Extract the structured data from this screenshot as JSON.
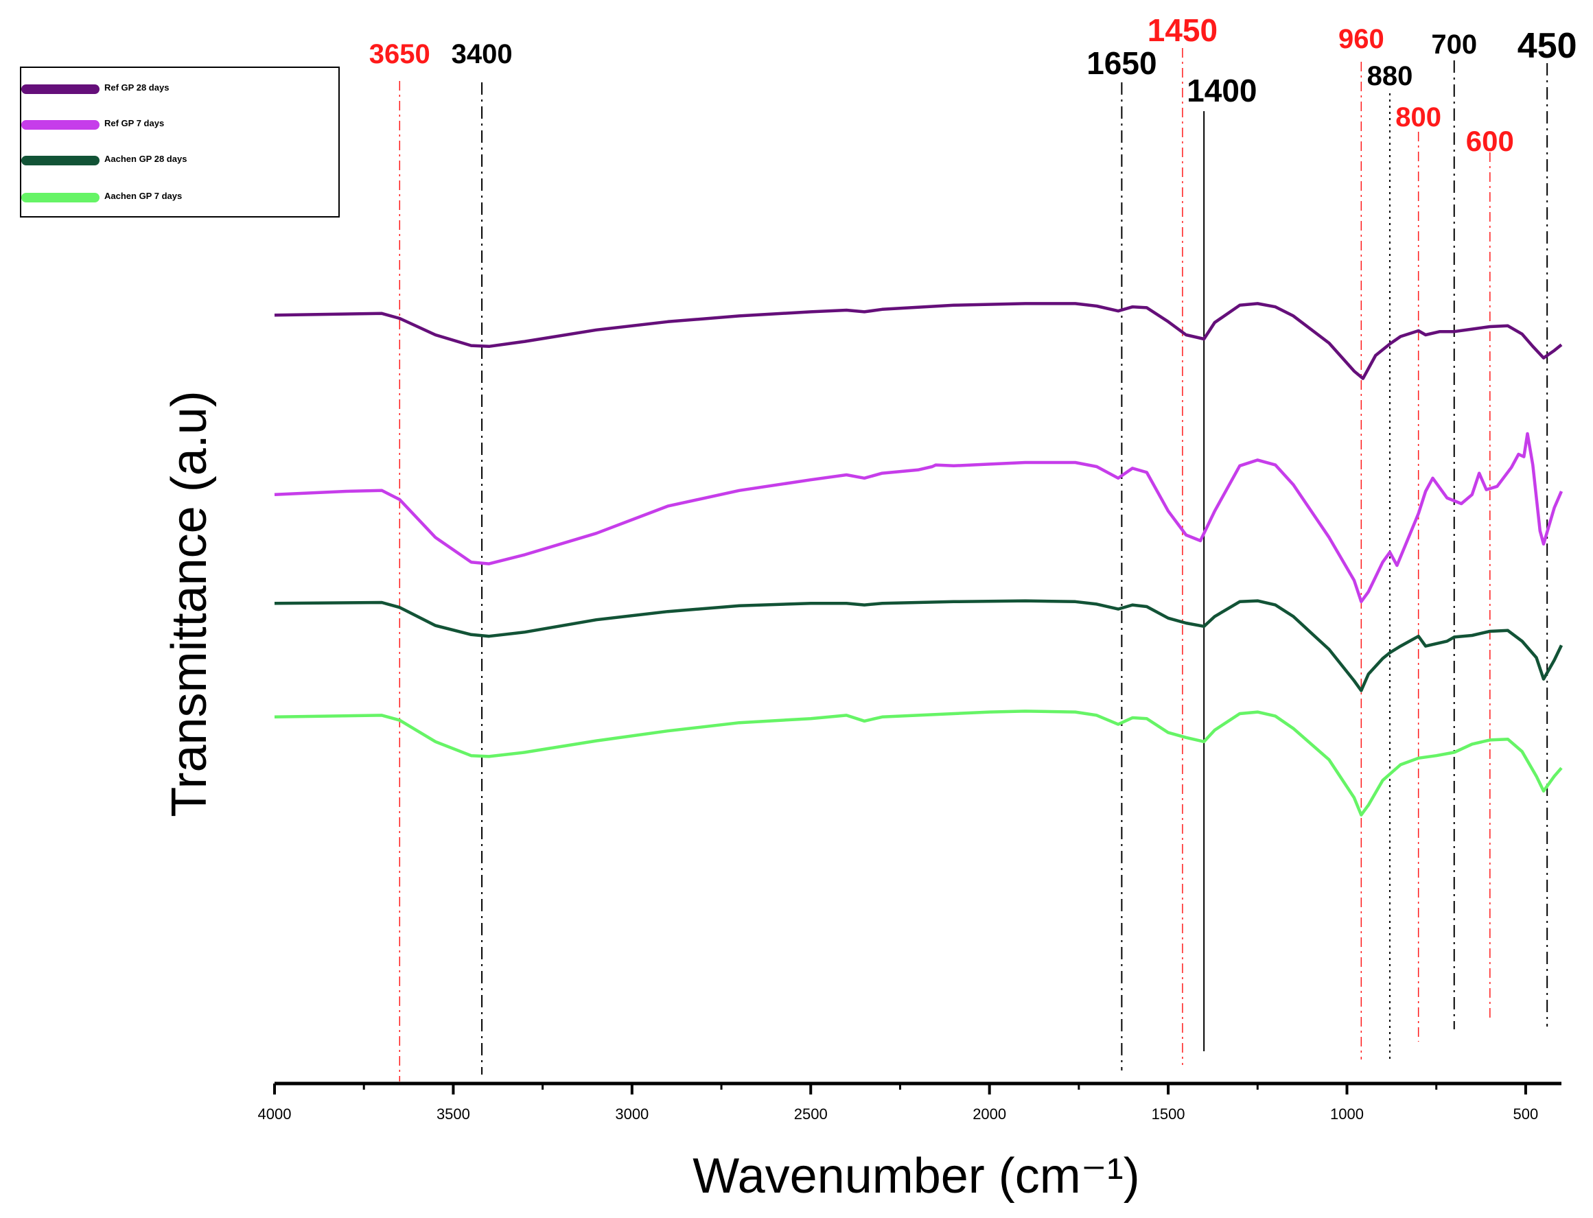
{
  "chart_data": {
    "type": "line",
    "xlabel": "Wavenumber (cm⁻¹)",
    "ylabel": "Transmittance (a.u)",
    "xlim": [
      4000,
      400
    ],
    "xticks": [
      4000,
      3500,
      3000,
      2500,
      2000,
      1500,
      1000,
      500
    ],
    "xtick_labels": [
      "4000",
      "3500",
      "3000",
      "2500",
      "2000",
      "1500",
      "1000",
      "500"
    ],
    "ylim": [
      0,
      100
    ],
    "legend_position": "top-left",
    "series": [
      {
        "name": "Ref GP 28 days",
        "color": "#650f7a",
        "points": [
          [
            4000,
            88.4
          ],
          [
            3700,
            88.6
          ],
          [
            3650,
            88.0
          ],
          [
            3550,
            86.0
          ],
          [
            3450,
            84.7
          ],
          [
            3400,
            84.6
          ],
          [
            3300,
            85.2
          ],
          [
            3100,
            86.6
          ],
          [
            2900,
            87.6
          ],
          [
            2700,
            88.3
          ],
          [
            2500,
            88.8
          ],
          [
            2400,
            89.0
          ],
          [
            2350,
            88.8
          ],
          [
            2300,
            89.1
          ],
          [
            2100,
            89.6
          ],
          [
            1900,
            89.8
          ],
          [
            1760,
            89.8
          ],
          [
            1700,
            89.5
          ],
          [
            1640,
            88.9
          ],
          [
            1600,
            89.4
          ],
          [
            1560,
            89.3
          ],
          [
            1500,
            87.6
          ],
          [
            1450,
            86.0
          ],
          [
            1400,
            85.5
          ],
          [
            1370,
            87.5
          ],
          [
            1300,
            89.6
          ],
          [
            1250,
            89.8
          ],
          [
            1200,
            89.4
          ],
          [
            1150,
            88.3
          ],
          [
            1050,
            85.0
          ],
          [
            980,
            81.6
          ],
          [
            955,
            80.7
          ],
          [
            920,
            83.5
          ],
          [
            880,
            84.9
          ],
          [
            850,
            85.8
          ],
          [
            800,
            86.5
          ],
          [
            780,
            86.0
          ],
          [
            740,
            86.4
          ],
          [
            700,
            86.4
          ],
          [
            650,
            86.7
          ],
          [
            600,
            87.0
          ],
          [
            550,
            87.1
          ],
          [
            510,
            86.1
          ],
          [
            480,
            84.6
          ],
          [
            450,
            83.2
          ],
          [
            420,
            84.1
          ],
          [
            400,
            84.8
          ]
        ]
      },
      {
        "name": "Ref GP 7 days",
        "color": "#c63dea",
        "points": [
          [
            4000,
            66.6
          ],
          [
            3800,
            67.0
          ],
          [
            3700,
            67.1
          ],
          [
            3650,
            66.0
          ],
          [
            3550,
            61.4
          ],
          [
            3450,
            58.4
          ],
          [
            3400,
            58.2
          ],
          [
            3300,
            59.3
          ],
          [
            3100,
            61.9
          ],
          [
            2900,
            65.2
          ],
          [
            2700,
            67.1
          ],
          [
            2500,
            68.4
          ],
          [
            2400,
            69.0
          ],
          [
            2350,
            68.6
          ],
          [
            2300,
            69.2
          ],
          [
            2200,
            69.6
          ],
          [
            2160,
            70.0
          ],
          [
            2150,
            70.2
          ],
          [
            2100,
            70.1
          ],
          [
            2000,
            70.3
          ],
          [
            1900,
            70.5
          ],
          [
            1760,
            70.5
          ],
          [
            1700,
            70.0
          ],
          [
            1640,
            68.6
          ],
          [
            1600,
            69.8
          ],
          [
            1560,
            69.3
          ],
          [
            1500,
            64.6
          ],
          [
            1450,
            61.7
          ],
          [
            1410,
            61.0
          ],
          [
            1370,
            64.6
          ],
          [
            1300,
            70.1
          ],
          [
            1250,
            70.8
          ],
          [
            1200,
            70.2
          ],
          [
            1150,
            67.8
          ],
          [
            1050,
            61.4
          ],
          [
            980,
            56.2
          ],
          [
            960,
            53.6
          ],
          [
            940,
            54.8
          ],
          [
            900,
            58.4
          ],
          [
            880,
            59.6
          ],
          [
            860,
            58.0
          ],
          [
            800,
            64.3
          ],
          [
            780,
            67.0
          ],
          [
            760,
            68.6
          ],
          [
            720,
            66.2
          ],
          [
            680,
            65.5
          ],
          [
            650,
            66.6
          ],
          [
            630,
            69.2
          ],
          [
            610,
            67.2
          ],
          [
            580,
            67.6
          ],
          [
            540,
            69.9
          ],
          [
            520,
            71.5
          ],
          [
            505,
            71.2
          ],
          [
            495,
            74.0
          ],
          [
            480,
            70.2
          ],
          [
            460,
            62.2
          ],
          [
            450,
            60.6
          ],
          [
            420,
            65.0
          ],
          [
            400,
            67.0
          ]
        ]
      },
      {
        "name": "Aachen GP 28 days",
        "color": "#125336",
        "points": [
          [
            4000,
            53.4
          ],
          [
            3700,
            53.5
          ],
          [
            3650,
            52.9
          ],
          [
            3550,
            50.7
          ],
          [
            3450,
            49.6
          ],
          [
            3400,
            49.4
          ],
          [
            3300,
            49.9
          ],
          [
            3100,
            51.4
          ],
          [
            2900,
            52.4
          ],
          [
            2700,
            53.1
          ],
          [
            2500,
            53.4
          ],
          [
            2400,
            53.4
          ],
          [
            2350,
            53.2
          ],
          [
            2300,
            53.4
          ],
          [
            2100,
            53.6
          ],
          [
            1900,
            53.7
          ],
          [
            1760,
            53.6
          ],
          [
            1700,
            53.3
          ],
          [
            1640,
            52.7
          ],
          [
            1600,
            53.2
          ],
          [
            1560,
            53.0
          ],
          [
            1500,
            51.6
          ],
          [
            1450,
            51.0
          ],
          [
            1400,
            50.6
          ],
          [
            1370,
            51.8
          ],
          [
            1300,
            53.6
          ],
          [
            1250,
            53.7
          ],
          [
            1200,
            53.2
          ],
          [
            1150,
            51.8
          ],
          [
            1050,
            47.8
          ],
          [
            980,
            44.0
          ],
          [
            960,
            42.8
          ],
          [
            940,
            44.8
          ],
          [
            900,
            46.7
          ],
          [
            880,
            47.4
          ],
          [
            850,
            48.2
          ],
          [
            800,
            49.4
          ],
          [
            780,
            48.2
          ],
          [
            720,
            48.8
          ],
          [
            700,
            49.3
          ],
          [
            650,
            49.5
          ],
          [
            600,
            50.0
          ],
          [
            550,
            50.1
          ],
          [
            510,
            48.8
          ],
          [
            470,
            46.8
          ],
          [
            450,
            44.2
          ],
          [
            420,
            46.5
          ],
          [
            400,
            48.3
          ]
        ]
      },
      {
        "name": "Aachen GP 7 days",
        "color": "#66f466",
        "points": [
          [
            4000,
            39.6
          ],
          [
            3700,
            39.8
          ],
          [
            3650,
            39.2
          ],
          [
            3550,
            36.6
          ],
          [
            3450,
            34.9
          ],
          [
            3400,
            34.8
          ],
          [
            3300,
            35.3
          ],
          [
            3100,
            36.7
          ],
          [
            2900,
            37.9
          ],
          [
            2700,
            38.9
          ],
          [
            2500,
            39.4
          ],
          [
            2400,
            39.8
          ],
          [
            2350,
            39.1
          ],
          [
            2300,
            39.6
          ],
          [
            2100,
            40.0
          ],
          [
            2000,
            40.2
          ],
          [
            1900,
            40.3
          ],
          [
            1760,
            40.2
          ],
          [
            1700,
            39.8
          ],
          [
            1640,
            38.7
          ],
          [
            1600,
            39.5
          ],
          [
            1560,
            39.4
          ],
          [
            1500,
            37.7
          ],
          [
            1450,
            37.1
          ],
          [
            1400,
            36.6
          ],
          [
            1370,
            38.0
          ],
          [
            1300,
            40.0
          ],
          [
            1250,
            40.2
          ],
          [
            1200,
            39.7
          ],
          [
            1150,
            38.2
          ],
          [
            1050,
            34.4
          ],
          [
            980,
            29.8
          ],
          [
            960,
            27.7
          ],
          [
            940,
            28.9
          ],
          [
            900,
            31.9
          ],
          [
            850,
            33.8
          ],
          [
            800,
            34.6
          ],
          [
            750,
            34.9
          ],
          [
            700,
            35.3
          ],
          [
            650,
            36.3
          ],
          [
            600,
            36.8
          ],
          [
            550,
            36.9
          ],
          [
            510,
            35.4
          ],
          [
            470,
            32.4
          ],
          [
            450,
            30.6
          ],
          [
            420,
            32.4
          ],
          [
            400,
            33.4
          ]
        ]
      }
    ],
    "reference_lines": [
      {
        "x": 3650,
        "label": "3650",
        "color": "#ff1a1a",
        "style": "dashdot-red"
      },
      {
        "x": 3420,
        "label": "3400",
        "color": "#000000",
        "style": "dashdot"
      },
      {
        "x": 1630,
        "label": "1650",
        "color": "#000000",
        "style": "dashdot"
      },
      {
        "x": 1460,
        "label": "1450",
        "color": "#ff1a1a",
        "style": "dashdot-red"
      },
      {
        "x": 1400,
        "label": "1400",
        "color": "#000000",
        "style": "solid"
      },
      {
        "x": 960,
        "label": "960",
        "color": "#ff1a1a",
        "style": "dashdot-red"
      },
      {
        "x": 880,
        "label": "880",
        "color": "#000000",
        "style": "dotted"
      },
      {
        "x": 800,
        "label": "800",
        "color": "#ff1a1a",
        "style": "dashdot-red"
      },
      {
        "x": 700,
        "label": "700",
        "color": "#000000",
        "style": "dashdot"
      },
      {
        "x": 600,
        "label": "600",
        "color": "#ff1a1a",
        "style": "dashdot-red"
      },
      {
        "x": 440,
        "label": "450",
        "color": "#000000",
        "style": "dashdot"
      }
    ]
  }
}
